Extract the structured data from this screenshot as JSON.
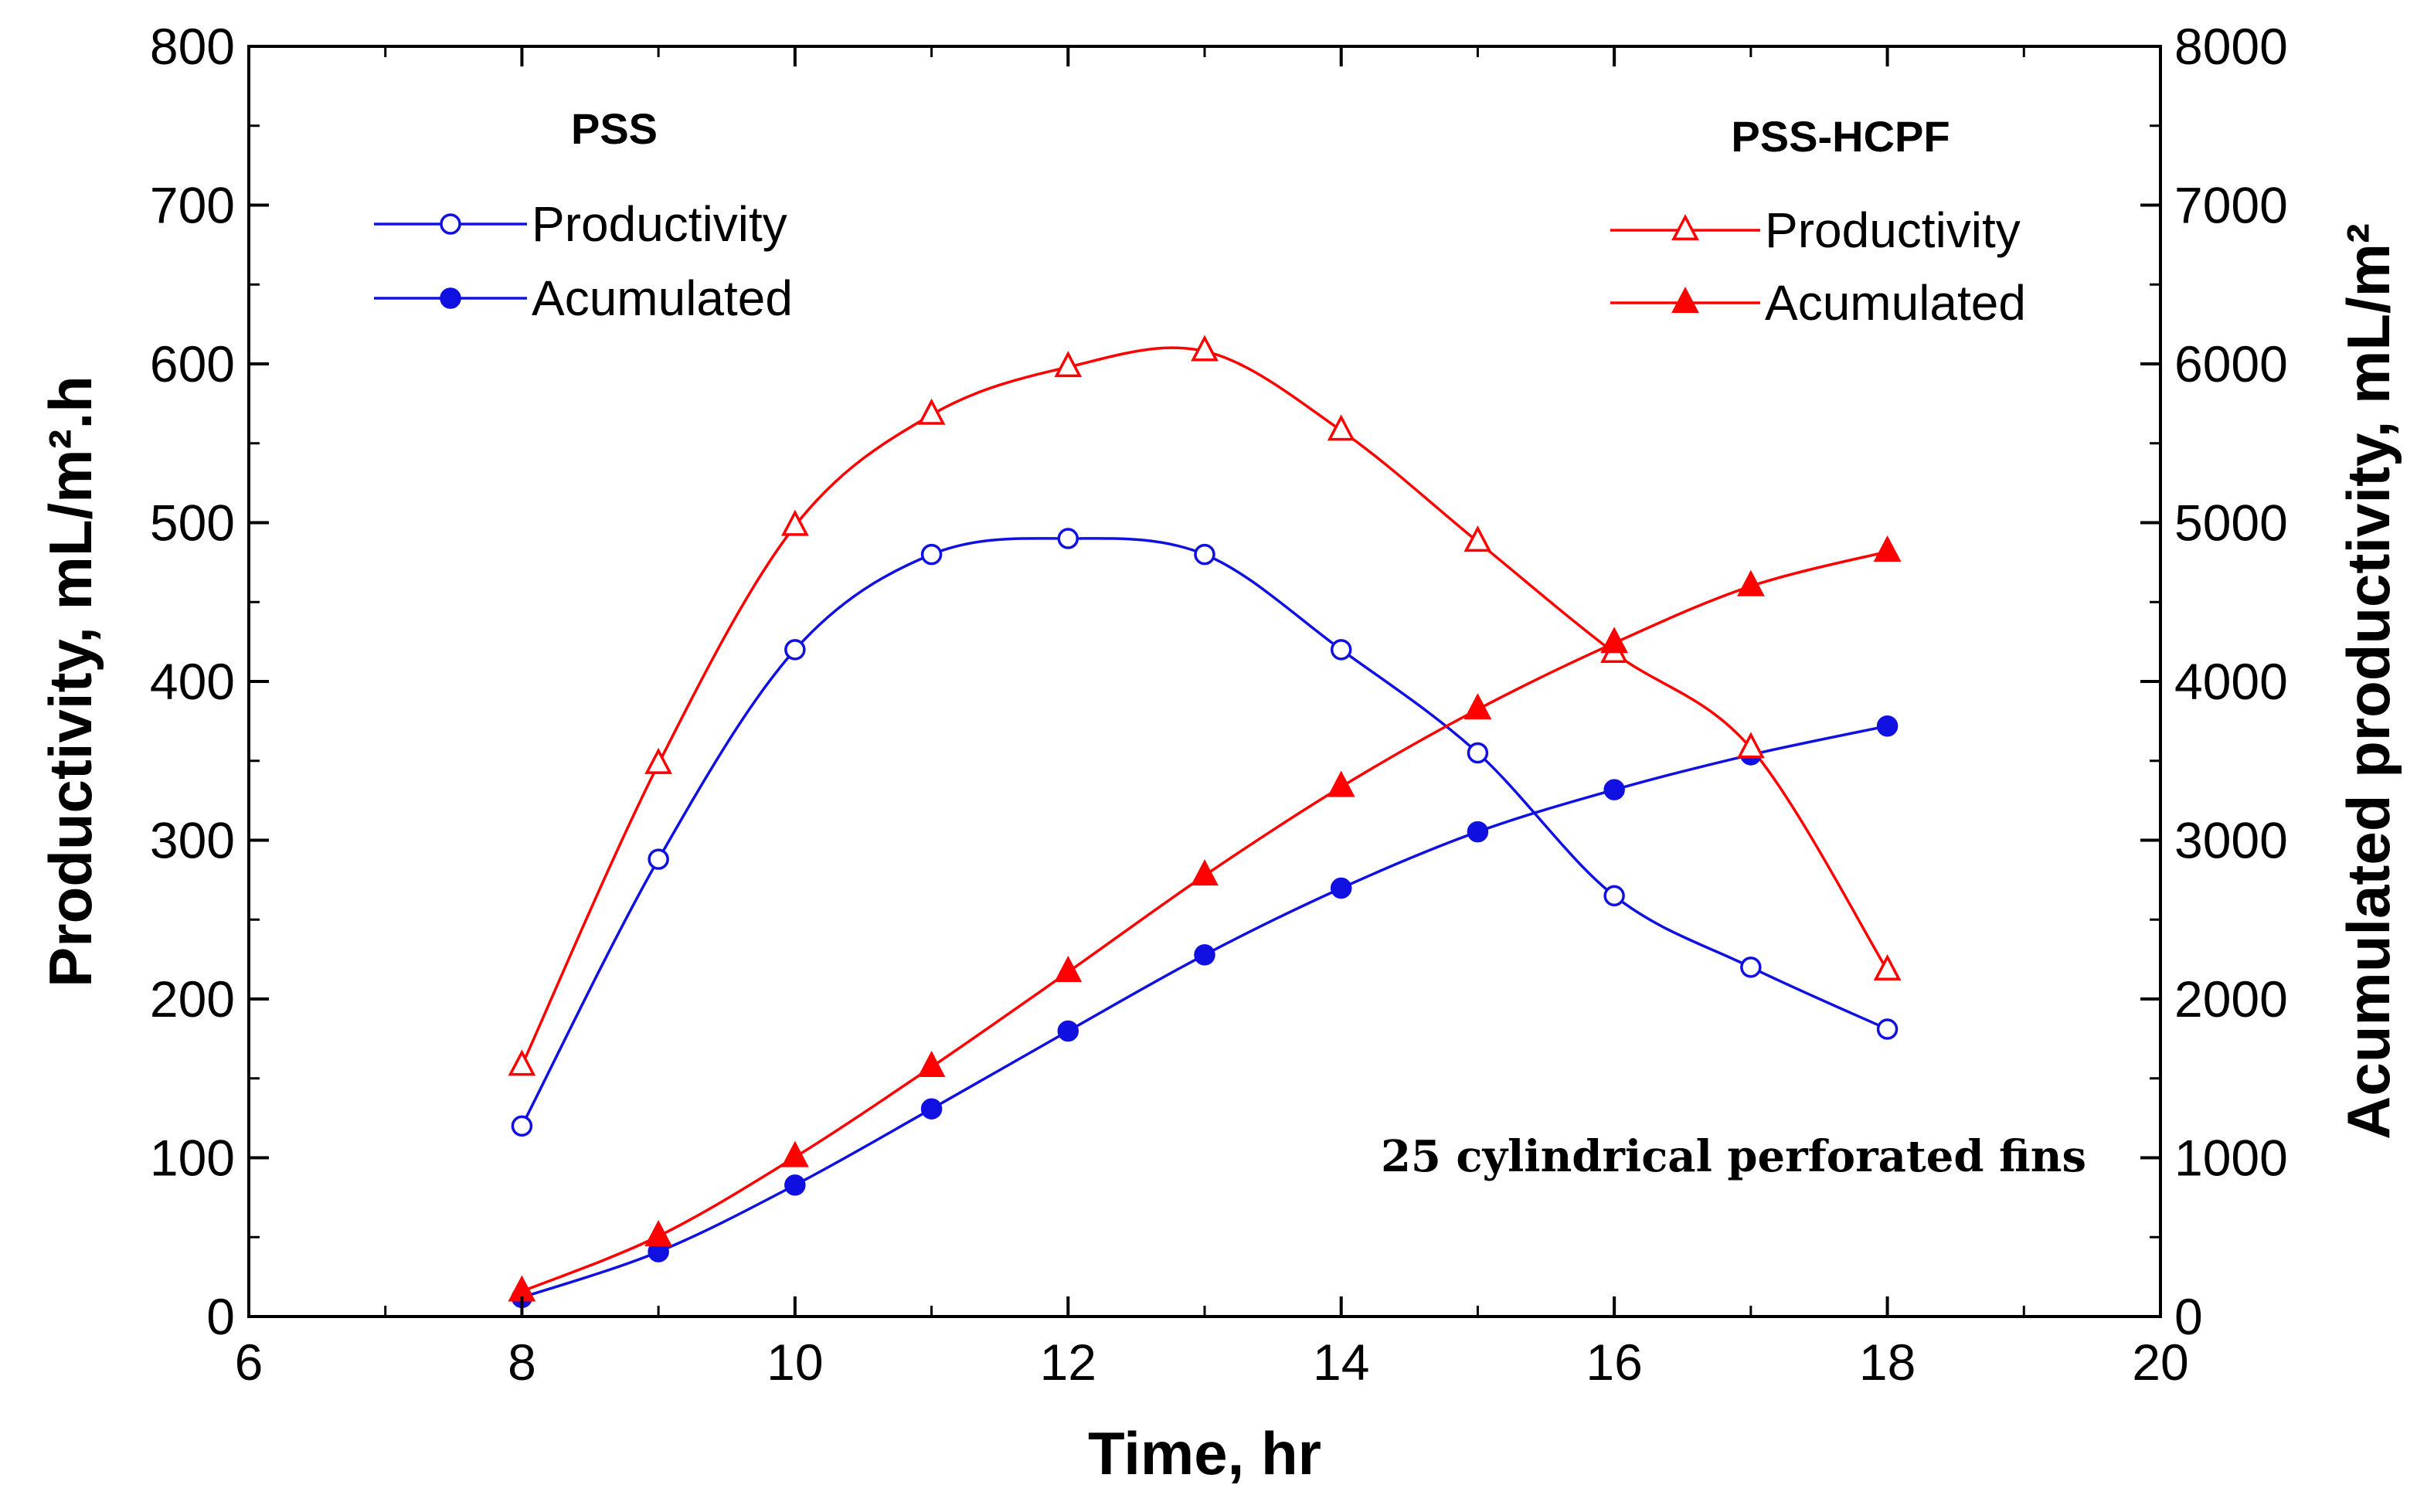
{
  "chart_data": {
    "type": "line",
    "xlabel": "Time, hr",
    "ylabel": "Productivity, mL/m².h",
    "y2label": "Acumulated productivity, mL/m²",
    "xlim": [
      6,
      20
    ],
    "ylim": [
      0,
      800
    ],
    "y2lim": [
      0,
      8000
    ],
    "xticks": [
      "6",
      "8",
      "10",
      "12",
      "14",
      "16",
      "18",
      "20"
    ],
    "yticks": [
      "0",
      "100",
      "200",
      "300",
      "400",
      "500",
      "600",
      "700",
      "800"
    ],
    "y2ticks": [
      "0",
      "1000",
      "2000",
      "3000",
      "4000",
      "5000",
      "6000",
      "7000",
      "8000"
    ],
    "grid": false,
    "annotation": "25 cylindrical perforated fins",
    "legends": [
      {
        "title": "PSS",
        "placement": "top-left",
        "entries": [
          "Productivity",
          "Acumulated"
        ]
      },
      {
        "title": "PSS-HCPF",
        "placement": "top-right",
        "entries": [
          "Productivity",
          "Acumulated"
        ]
      }
    ],
    "series": [
      {
        "group": "PSS",
        "name": "Productivity",
        "axis": "left",
        "color": "#1010e0",
        "marker": "circle-open",
        "x": [
          8,
          9,
          10,
          11,
          12,
          13,
          14,
          15,
          16,
          17,
          18
        ],
        "values": [
          120,
          288,
          420,
          480,
          490,
          480,
          420,
          355,
          265,
          220,
          181
        ]
      },
      {
        "group": "PSS",
        "name": "Acumulated",
        "axis": "right",
        "color": "#1010e0",
        "marker": "circle-filled",
        "x": [
          8,
          9,
          10,
          11,
          12,
          13,
          14,
          15,
          16,
          17,
          18
        ],
        "values": [
          120,
          408,
          828,
          1308,
          1798,
          2278,
          2698,
          3053,
          3318,
          3538,
          3719
        ]
      },
      {
        "group": "PSS-HCPF",
        "name": "Productivity",
        "axis": "left",
        "color": "#ff0000",
        "marker": "triangle-open",
        "x": [
          8,
          9,
          10,
          11,
          12,
          13,
          14,
          15,
          16,
          17,
          18
        ],
        "values": [
          158,
          348,
          498,
          568,
          598,
          608,
          558,
          488,
          418,
          358,
          218
        ]
      },
      {
        "group": "PSS-HCPF",
        "name": "Acumulated",
        "axis": "right",
        "color": "#ff0000",
        "marker": "triangle-filled",
        "x": [
          8,
          9,
          10,
          11,
          12,
          13,
          14,
          15,
          16,
          17,
          18
        ],
        "values": [
          158,
          506,
          1004,
          1572,
          2170,
          2778,
          3336,
          3824,
          4242,
          4600,
          4818
        ]
      }
    ]
  }
}
